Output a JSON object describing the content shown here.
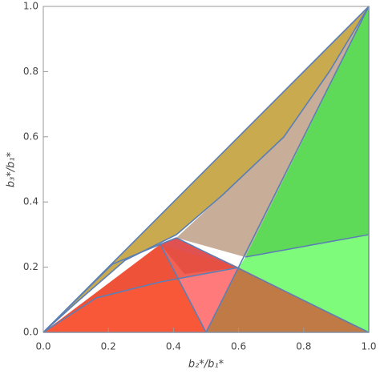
{
  "chart_data": {
    "type": "region",
    "x_label": "b₂*/b₁*",
    "y_label": "b₃*/b₁*",
    "xlim": [
      0,
      1
    ],
    "ylim": [
      0,
      1
    ],
    "xticks": [
      {
        "value": 0,
        "label": "0.0"
      },
      0.2,
      0.4,
      0.6,
      0.8,
      {
        "value": 1,
        "label": "1.0"
      }
    ],
    "yticks": [
      {
        "value": 0,
        "label": "0.0"
      },
      0.2,
      0.4,
      0.6,
      0.8,
      {
        "value": 1,
        "label": "1.0"
      }
    ]
  }
}
